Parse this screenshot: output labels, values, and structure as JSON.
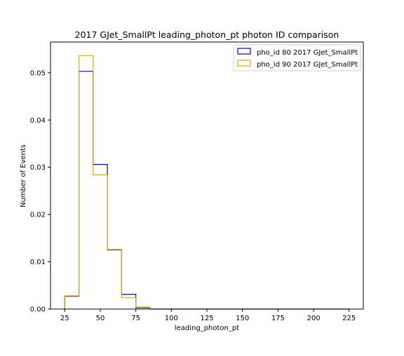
{
  "chart_data": {
    "type": "histogram-step",
    "title": "2017 GJet_SmallPt leading_photon_pt photon ID comparison",
    "xlabel": "leading_photon_pt",
    "ylabel": "Number of Events",
    "xlim": [
      15,
      235
    ],
    "ylim": [
      0,
      0.0565
    ],
    "xticks": [
      25,
      50,
      75,
      100,
      125,
      150,
      175,
      200,
      225
    ],
    "yticks": [
      0.0,
      0.01,
      0.02,
      0.03,
      0.04,
      0.05
    ],
    "ytick_labels": [
      "0.00",
      "0.01",
      "0.02",
      "0.03",
      "0.04",
      "0.05"
    ],
    "bin_edges": [
      25,
      35,
      45,
      55,
      65,
      75,
      85,
      95,
      105,
      115,
      125,
      135,
      145,
      155,
      165,
      175,
      185,
      195,
      205,
      215,
      225
    ],
    "series": [
      {
        "name": "pho_id 80 2017 GJet_SmallPt",
        "color": "#0000bb",
        "values": [
          0.0027,
          0.0503,
          0.0306,
          0.0125,
          0.0031,
          0.0003,
          0,
          0,
          0,
          0,
          0,
          0,
          0,
          0,
          0,
          0,
          0,
          0,
          0,
          0
        ]
      },
      {
        "name": "pho_id 90 2017 GJet_SmallPt",
        "color": "#e0a800",
        "values": [
          0.0028,
          0.0536,
          0.0284,
          0.0126,
          0.0024,
          0.0004,
          0,
          0,
          0,
          0,
          0,
          0,
          0,
          0,
          0,
          0,
          0,
          0,
          0,
          0
        ]
      }
    ],
    "grid": false,
    "legend_position": "top-right"
  }
}
